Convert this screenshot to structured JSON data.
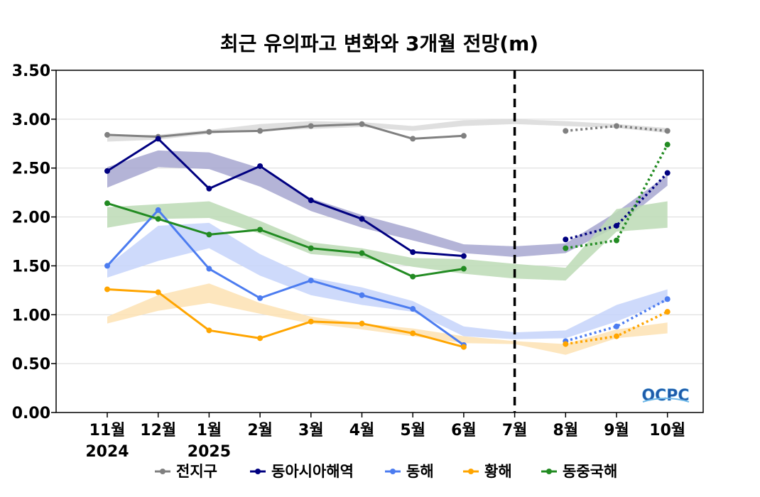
{
  "chart_data": {
    "type": "line",
    "title": "최근 유의파고 변화와 3개월 전망(m)",
    "categories": [
      "11월",
      "12월",
      "1월",
      "2월",
      "3월",
      "4월",
      "5월",
      "6월",
      "7월",
      "8월",
      "9월",
      "10월"
    ],
    "year_labels": [
      "2024",
      "",
      "2025",
      "",
      "",
      "",
      "",
      "",
      "",
      "",
      "",
      ""
    ],
    "ylim": [
      0,
      3.5
    ],
    "yticks": [
      "0.00",
      "0.50",
      "1.00",
      "1.50",
      "2.00",
      "2.50",
      "3.00",
      "3.50"
    ],
    "grid": true,
    "forecast_divider_at": "7월",
    "legend_position": "bottom",
    "logo": "OCPC",
    "series": [
      {
        "name": "전지구",
        "color": "#808080",
        "band_color": "#d9d9d9",
        "observed": [
          2.84,
          2.82,
          2.87,
          2.88,
          2.93,
          2.95,
          2.8,
          2.83
        ],
        "forecast": [
          2.88,
          2.93,
          2.88
        ],
        "band_low": [
          2.77,
          2.79,
          2.85,
          2.88,
          2.9,
          2.92,
          2.88,
          2.93,
          2.95,
          2.93,
          2.91,
          2.86
        ],
        "band_high": [
          2.83,
          2.84,
          2.89,
          2.95,
          2.98,
          2.97,
          2.93,
          2.99,
          3.0,
          2.98,
          2.95,
          2.91
        ]
      },
      {
        "name": "동아시아해역",
        "color": "#000080",
        "band_color": "#a7a7d0",
        "observed": [
          2.47,
          2.8,
          2.29,
          2.52,
          2.17,
          1.98,
          1.64,
          1.6
        ],
        "forecast": [
          1.77,
          1.91,
          2.45
        ],
        "band_low": [
          2.3,
          2.51,
          2.49,
          2.31,
          2.06,
          1.89,
          1.76,
          1.63,
          1.59,
          1.63,
          1.9,
          2.32
        ],
        "band_high": [
          2.51,
          2.68,
          2.66,
          2.5,
          2.19,
          2.02,
          1.88,
          1.72,
          1.7,
          1.73,
          2.05,
          2.43
        ]
      },
      {
        "name": "동해",
        "color": "#4c7cf0",
        "band_color": "#c5d3fa",
        "observed": [
          1.5,
          2.07,
          1.47,
          1.17,
          1.35,
          1.2,
          1.06,
          0.69
        ],
        "forecast": [
          0.73,
          0.88,
          1.16
        ],
        "band_low": [
          1.38,
          1.55,
          1.68,
          1.4,
          1.2,
          1.1,
          1.03,
          0.78,
          0.75,
          0.76,
          0.93,
          1.14
        ],
        "band_high": [
          1.5,
          1.91,
          1.94,
          1.62,
          1.38,
          1.28,
          1.14,
          0.88,
          0.82,
          0.84,
          1.1,
          1.26
        ]
      },
      {
        "name": "황해",
        "color": "#ffa500",
        "band_color": "#fde2b3",
        "observed": [
          1.26,
          1.23,
          0.84,
          0.76,
          0.93,
          0.91,
          0.81,
          0.67
        ],
        "forecast": [
          0.7,
          0.78,
          1.03
        ],
        "band_low": [
          0.91,
          1.04,
          1.12,
          1.01,
          0.91,
          0.85,
          0.78,
          0.71,
          0.7,
          0.59,
          0.76,
          0.81
        ],
        "band_high": [
          0.98,
          1.2,
          1.32,
          1.12,
          0.98,
          0.91,
          0.86,
          0.78,
          0.73,
          0.7,
          0.85,
          0.92
        ]
      },
      {
        "name": "동중국해",
        "color": "#228b22",
        "band_color": "#bcdbb5",
        "observed": [
          2.14,
          1.98,
          1.82,
          1.87,
          1.68,
          1.63,
          1.39,
          1.47
        ],
        "forecast": [
          1.68,
          1.76,
          2.74
        ],
        "band_low": [
          1.89,
          1.98,
          1.99,
          1.83,
          1.62,
          1.58,
          1.49,
          1.42,
          1.37,
          1.35,
          1.85,
          1.89
        ],
        "band_high": [
          2.1,
          2.13,
          2.16,
          1.96,
          1.74,
          1.68,
          1.58,
          1.57,
          1.52,
          1.48,
          2.08,
          2.16
        ]
      }
    ]
  }
}
